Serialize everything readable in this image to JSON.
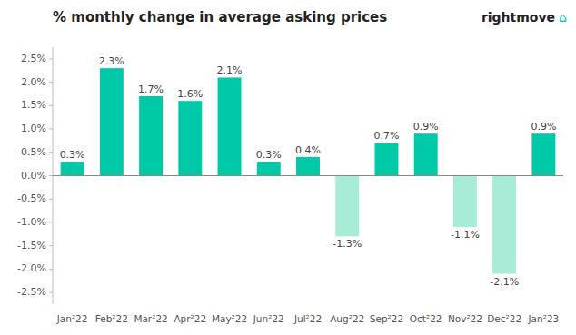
{
  "chart_data": {
    "type": "bar",
    "title": "% monthly change in average asking prices",
    "annotations": [
      "rightmove",
      "⌂"
    ],
    "categories": [
      "Jan²22",
      "Feb²22",
      "Mar²22",
      "Apr²22",
      "May²22",
      "Jun²22",
      "Jul²22",
      "Aug²22",
      "Sep²22",
      "Oct²22",
      "Nov²22",
      "Dec²22",
      "Jan²23"
    ],
    "values": [
      0.3,
      2.3,
      1.7,
      1.6,
      2.1,
      0.3,
      0.4,
      -1.3,
      0.7,
      0.9,
      -1.1,
      -2.1,
      0.9
    ],
    "value_labels": [
      "0.3%",
      "2.3%",
      "1.7%",
      "1.6%",
      "2.1%",
      "0.3%",
      "0.4%",
      "-1.3%",
      "0.7%",
      "0.9%",
      "-1.1%",
      "-2.1%",
      "0.9%"
    ],
    "colors": [
      "#00C9A7",
      "#00C9A7",
      "#00C9A7",
      "#00C9A7",
      "#00C9A7",
      "#00C9A7",
      "#00C9A7",
      "#A8ECD8",
      "#00C9A7",
      "#00C9A7",
      "#A8ECD8",
      "#A8ECD8",
      "#00C9A7"
    ],
    "data_labels": true,
    "grid": false,
    "ylim": [
      -2.75,
      2.75
    ],
    "yticks": [
      {
        "value": -2.5,
        "label": "-2.5%"
      },
      {
        "value": -2.0,
        "label": "-2.0%"
      },
      {
        "value": -1.5,
        "label": "-1.5%"
      },
      {
        "value": -1.0,
        "label": "-1.0%"
      },
      {
        "value": -0.5,
        "label": "-0.5%"
      },
      {
        "value": 0.0,
        "label": "0.0%"
      },
      {
        "value": 0.5,
        "label": "0.5%"
      },
      {
        "value": 1.0,
        "label": "1.0%"
      },
      {
        "value": 1.5,
        "label": "1.5%"
      },
      {
        "value": 2.0,
        "label": "2.0%"
      },
      {
        "value": 2.5,
        "label": "2.5%"
      }
    ]
  }
}
